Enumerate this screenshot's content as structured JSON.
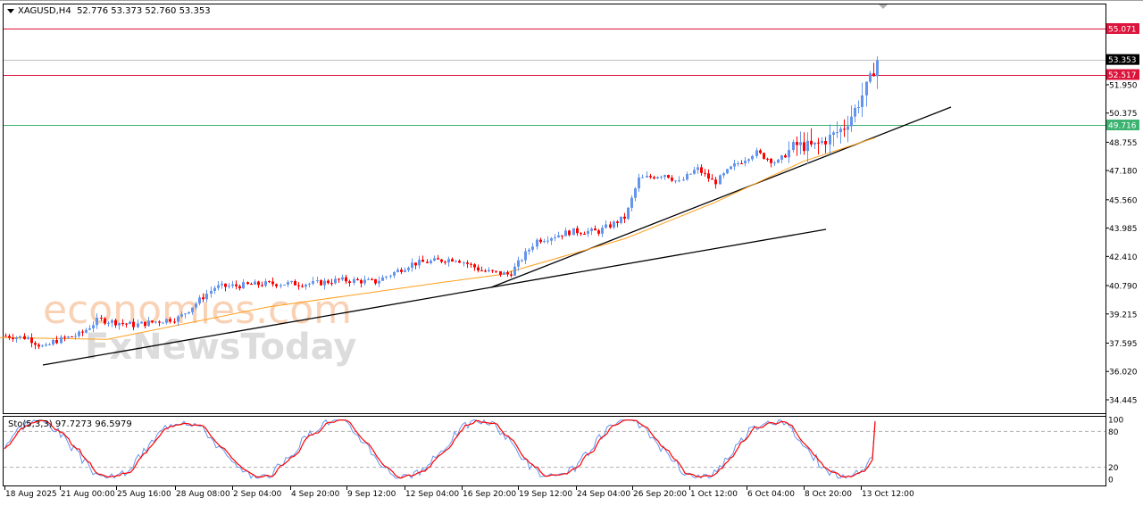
{
  "header": {
    "symbol": "XAGUSD,H4",
    "ohlc": "52.776 53.373 52.760 53.353"
  },
  "indicator": {
    "label": "Sto(5,3,3) 97.7273 96.5979",
    "levels": [
      "100",
      "80",
      "20",
      "0"
    ]
  },
  "watermark": {
    "line1": "economies.com",
    "line2": "FxNewsToday"
  },
  "colors": {
    "bull": "#6495ed",
    "bear": "#ff0000",
    "ma": "#ff9f1c",
    "resistance": "#dc143c",
    "support": "#3cb371",
    "current": "#000000",
    "stoch_main": "#6495ed",
    "stoch_signal": "#ff0000"
  },
  "chart_data": {
    "type": "candlestick",
    "title": "XAGUSD,H4",
    "ohlc_last": {
      "open": 52.776,
      "high": 53.373,
      "low": 52.76,
      "close": 53.353
    },
    "y_ticks": [
      55.071,
      53.353,
      52.517,
      51.95,
      50.375,
      49.716,
      48.755,
      47.18,
      45.56,
      43.985,
      42.41,
      40.79,
      39.215,
      37.595,
      36.02,
      34.445
    ],
    "y_axis_labels": [
      "51.950",
      "50.375",
      "48.755",
      "47.180",
      "45.560",
      "43.985",
      "42.410",
      "40.790",
      "39.215",
      "37.595",
      "36.020",
      "34.445"
    ],
    "ylim": [
      34.445,
      56.9
    ],
    "x_ticks": [
      "18 Aug 2025",
      "21 Aug 00:00",
      "25 Aug 16:00",
      "28 Aug 08:00",
      "2 Sep 04:00",
      "4 Sep 20:00",
      "9 Sep 12:00",
      "12 Sep 04:00",
      "16 Sep 20:00",
      "19 Sep 12:00",
      "24 Sep 04:00",
      "26 Sep 20:00",
      "1 Oct 12:00",
      "6 Oct 04:00",
      "8 Oct 20:00",
      "13 Oct 12:00"
    ],
    "horizontal_lines": [
      {
        "name": "resistance-2",
        "value": 55.071,
        "color": "#dc143c"
      },
      {
        "name": "current-price",
        "value": 53.353,
        "color": "#c0c0c0"
      },
      {
        "name": "resistance-1",
        "value": 52.517,
        "color": "#dc143c"
      },
      {
        "name": "support-1",
        "value": 49.716,
        "color": "#3cb371"
      }
    ],
    "trendlines": [
      {
        "name": "long-trend",
        "from": {
          "x": "19 Aug 2025",
          "y": 37.0
        },
        "to": {
          "x": "9 Oct",
          "y": 43.9
        }
      },
      {
        "name": "short-trend",
        "from": {
          "x": "17 Sep",
          "y": 40.9
        },
        "to": {
          "x": "15 Oct",
          "y": 50.7
        }
      }
    ],
    "moving_average": {
      "color": "#ff9f1c",
      "approx_points": [
        [
          0,
          37.9
        ],
        [
          120,
          37.8
        ],
        [
          300,
          39.6
        ],
        [
          500,
          41.0
        ],
        [
          560,
          41.4
        ],
        [
          700,
          43.4
        ],
        [
          800,
          45.4
        ],
        [
          900,
          47.7
        ],
        [
          980,
          49.0
        ]
      ]
    },
    "close_path": [
      [
        5,
        38.0
      ],
      [
        30,
        37.9
      ],
      [
        50,
        37.3
      ],
      [
        60,
        37.7
      ],
      [
        90,
        38.1
      ],
      [
        110,
        38.9
      ],
      [
        150,
        38.6
      ],
      [
        200,
        39.0
      ],
      [
        240,
        40.7
      ],
      [
        300,
        40.9
      ],
      [
        350,
        40.9
      ],
      [
        380,
        41.1
      ],
      [
        420,
        41.0
      ],
      [
        460,
        42.0
      ],
      [
        510,
        42.3
      ],
      [
        540,
        41.6
      ],
      [
        570,
        41.4
      ],
      [
        600,
        43.3
      ],
      [
        640,
        43.8
      ],
      [
        670,
        43.8
      ],
      [
        700,
        44.6
      ],
      [
        715,
        46.7
      ],
      [
        745,
        47.0
      ],
      [
        760,
        46.5
      ],
      [
        780,
        47.3
      ],
      [
        800,
        46.5
      ],
      [
        820,
        47.4
      ],
      [
        845,
        48.2
      ],
      [
        870,
        47.6
      ],
      [
        890,
        48.6
      ],
      [
        910,
        48.5
      ],
      [
        925,
        48.9
      ],
      [
        945,
        49.6
      ],
      [
        960,
        50.8
      ],
      [
        975,
        52.4
      ],
      [
        982,
        53.35
      ]
    ],
    "stochastic": {
      "params": "5,3,3",
      "main": 97.7273,
      "signal": 96.5979,
      "levels": [
        80,
        20
      ],
      "ylim": [
        0,
        100
      ]
    }
  }
}
